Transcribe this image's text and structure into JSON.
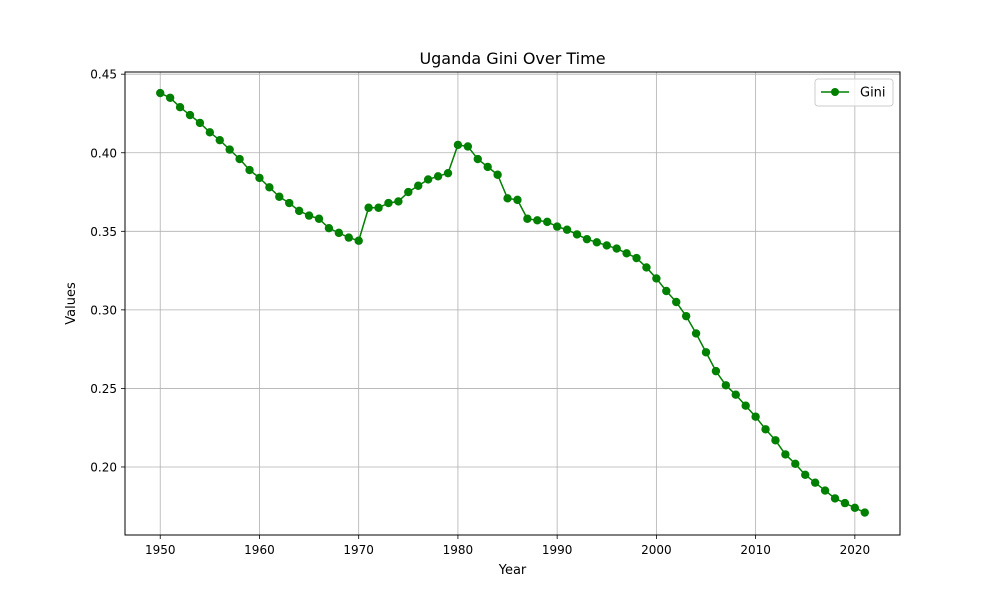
{
  "chart_data": {
    "type": "line",
    "title": "Uganda Gini Over Time",
    "xlabel": "Year",
    "ylabel": "Values",
    "xlim": [
      1946.45,
      2024.55
    ],
    "ylim": [
      0.1567,
      0.4514
    ],
    "x_ticks": [
      1950,
      1960,
      1970,
      1980,
      1990,
      2000,
      2010,
      2020
    ],
    "y_ticks": [
      "0.20",
      "0.25",
      "0.30",
      "0.35",
      "0.40",
      "0.45"
    ],
    "y_tick_values": [
      0.2,
      0.25,
      0.3,
      0.35,
      0.4,
      0.45
    ],
    "grid": true,
    "legend_position": "top-right",
    "series": [
      {
        "name": "Gini",
        "color": "#008000",
        "marker": "circle",
        "x": [
          1950,
          1951,
          1952,
          1953,
          1954,
          1955,
          1956,
          1957,
          1958,
          1959,
          1960,
          1961,
          1962,
          1963,
          1964,
          1965,
          1966,
          1967,
          1968,
          1969,
          1970,
          1971,
          1972,
          1973,
          1974,
          1975,
          1976,
          1977,
          1978,
          1979,
          1980,
          1981,
          1982,
          1983,
          1984,
          1985,
          1986,
          1987,
          1988,
          1989,
          1990,
          1991,
          1992,
          1993,
          1994,
          1995,
          1996,
          1997,
          1998,
          1999,
          2000,
          2001,
          2002,
          2003,
          2004,
          2005,
          2006,
          2007,
          2008,
          2009,
          2010,
          2011,
          2012,
          2013,
          2014,
          2015,
          2016,
          2017,
          2018,
          2019,
          2020,
          2021
        ],
        "values": [
          0.438,
          0.435,
          0.429,
          0.424,
          0.419,
          0.413,
          0.408,
          0.402,
          0.396,
          0.389,
          0.384,
          0.378,
          0.372,
          0.368,
          0.363,
          0.36,
          0.358,
          0.352,
          0.349,
          0.346,
          0.344,
          0.365,
          0.365,
          0.368,
          0.369,
          0.375,
          0.379,
          0.383,
          0.385,
          0.387,
          0.405,
          0.404,
          0.396,
          0.391,
          0.386,
          0.371,
          0.37,
          0.358,
          0.357,
          0.356,
          0.353,
          0.351,
          0.348,
          0.345,
          0.343,
          0.341,
          0.339,
          0.336,
          0.333,
          0.327,
          0.32,
          0.312,
          0.305,
          0.296,
          0.285,
          0.273,
          0.261,
          0.252,
          0.246,
          0.239,
          0.232,
          0.224,
          0.217,
          0.208,
          0.202,
          0.195,
          0.19,
          0.185,
          0.18,
          0.177,
          0.174,
          0.171
        ]
      }
    ]
  }
}
